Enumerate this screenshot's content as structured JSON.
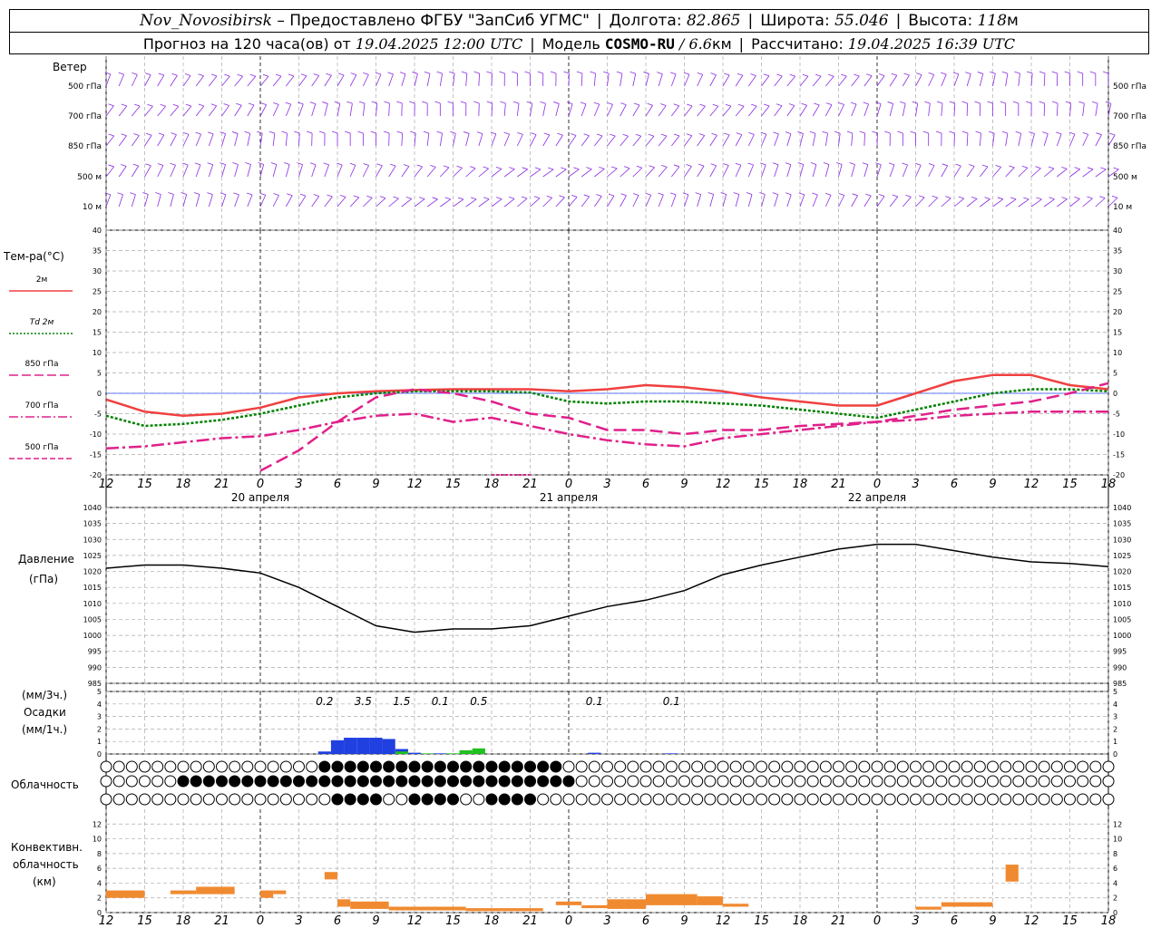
{
  "header": {
    "station": "Nov_Novosibirsk",
    "dash": "–",
    "provider": "Предоставлено ФГБУ \"ЗапСиб УГМС\"",
    "lon_label": "Долгота:",
    "lon": "82.865",
    "lat_label": "Широта:",
    "lat": "55.046",
    "alt_label": "Высота:",
    "alt": "118",
    "alt_unit": "м",
    "forecast_label": "Прогноз на 120 часа(ов) от",
    "forecast_time": "19.04.2025 12:00 UTC",
    "model_label": "Модель",
    "model": "COSMO-RU",
    "model_res": "/ 6.6",
    "res_unit": "км",
    "calc_label": "Рассчитано:",
    "calc_time": "19.04.2025 16:39 UTC"
  },
  "colors": {
    "t2m": "#f04040",
    "td2m": "#008000",
    "t850": "#e0208a",
    "grid": "#aaaaaa",
    "wind": "#8a2be2",
    "precip_rain": "#2040e0",
    "precip_green": "#20c020",
    "conv": "#f08a30"
  },
  "time_axis": {
    "hours": [
      "12",
      "15",
      "18",
      "21",
      "0",
      "3",
      "6",
      "9",
      "12",
      "15",
      "18",
      "21",
      "0",
      "3",
      "6",
      "9",
      "12",
      "15",
      "18",
      "21",
      "0",
      "3",
      "6",
      "9",
      "12",
      "15",
      "18"
    ],
    "dates": [
      "20 апреля",
      "21 апреля",
      "22 апреля"
    ]
  },
  "wind_panel": {
    "title": "Ветер",
    "levels": [
      "500 гПа",
      "700 гПа",
      "850 гПа",
      "500 м",
      "10 м"
    ],
    "levels_right": [
      "500 гПа",
      "700 гПа",
      "850 гПа",
      "500 м",
      "10 м"
    ]
  },
  "temp_panel": {
    "title": "Тем-ра(°C)",
    "legend": [
      {
        "label": "2м",
        "style": "solid",
        "color": "#f04040"
      },
      {
        "label": "Td  2м",
        "style": "dotted",
        "color": "#008000"
      },
      {
        "label": "850 гПа",
        "style": "dashed",
        "color": "#e0208a"
      },
      {
        "label": "700 гПа",
        "style": "dashdot",
        "color": "#e0208a"
      },
      {
        "label": "500 гПа",
        "style": "dashed-thin",
        "color": "#e0208a"
      }
    ],
    "yticks": [
      "40",
      "35",
      "30",
      "25",
      "20",
      "15",
      "10",
      "5",
      "0",
      "-5",
      "-10",
      "-15",
      "-20"
    ]
  },
  "pressure_panel": {
    "title": "Давление",
    "unit": "(гПа)",
    "yticks": [
      "1040",
      "1035",
      "1030",
      "1025",
      "1020",
      "1015",
      "1010",
      "1005",
      "1000",
      "995",
      "990",
      "985"
    ]
  },
  "precip_panel": {
    "unit_top": "(мм/3ч.)",
    "title": "Осадки",
    "unit_bottom": "(мм/1ч.)",
    "yticks": [
      "5",
      "4",
      "3",
      "2",
      "1",
      "0"
    ],
    "totals": [
      {
        "hour": 17,
        "text": "0.2"
      },
      {
        "hour": 20,
        "text": "3.5"
      },
      {
        "hour": 23,
        "text": "1.5"
      },
      {
        "hour": 26,
        "text": "0.1"
      },
      {
        "hour": 29,
        "text": "0.5"
      },
      {
        "hour": 38,
        "text": "0.1"
      },
      {
        "hour": 44,
        "text": "0.1"
      }
    ]
  },
  "cloud_panel": {
    "title": "Облачность"
  },
  "conv_panel": {
    "title_1": "Конвективн.",
    "title_2": "облачность",
    "unit": "(км)",
    "yticks": [
      "12",
      "10",
      "8",
      "6",
      "4",
      "2",
      "0"
    ]
  },
  "chart_data": [
    {
      "type": "line",
      "title": "Тем-ра(°C)",
      "x_hours_from_start": [
        0,
        3,
        6,
        9,
        12,
        15,
        18,
        21,
        24,
        27,
        30,
        33,
        36,
        39,
        42,
        45,
        48,
        51,
        54,
        57,
        60,
        63,
        66,
        69,
        72,
        75,
        78
      ],
      "ylim": [
        -20,
        40
      ],
      "series": [
        {
          "name": "2м",
          "values": [
            -1.5,
            -4.5,
            -5.5,
            -5,
            -3.5,
            -1,
            0,
            0.5,
            0.8,
            1,
            1,
            1,
            0.5,
            1,
            2,
            1.5,
            0.5,
            -1,
            -2,
            -3,
            -3,
            0,
            3,
            4.5,
            4.5,
            2,
            1
          ]
        },
        {
          "name": "Td  2м",
          "values": [
            -5.5,
            -8,
            -7.5,
            -6.5,
            -5,
            -3,
            -1,
            0,
            0.5,
            0.5,
            0.5,
            0.2,
            -2,
            -2.5,
            -2,
            -2,
            -2.5,
            -3,
            -4,
            -5,
            -6,
            -4,
            -2,
            0,
            1,
            1,
            0.5
          ]
        },
        {
          "name": "850 гПа",
          "values": [
            null,
            null,
            null,
            null,
            -19,
            -14,
            -7,
            -1,
            1,
            0,
            -2,
            -5,
            -6,
            -9,
            -9,
            -10,
            -9,
            -9,
            -8,
            -7.5,
            -7,
            -5.5,
            -4,
            -3,
            -2,
            0,
            2.5
          ]
        },
        {
          "name": "700 гПа",
          "values": [
            -13.5,
            -13,
            -12,
            -11,
            -10.5,
            -9,
            -7,
            -5.5,
            -5,
            -7,
            -6,
            -8,
            -10,
            -11.5,
            -12.5,
            -13,
            -11,
            -10,
            -9,
            -8,
            -7,
            -6.5,
            -5.5,
            -5,
            -4.5,
            -4.5,
            -4.5
          ]
        },
        {
          "name": "500 гПа",
          "values": [
            null,
            null,
            null,
            null,
            null,
            null,
            null,
            null,
            null,
            null,
            -20,
            -20,
            null,
            null,
            null,
            null,
            null,
            null,
            null,
            null,
            null,
            null,
            null,
            null,
            null,
            null,
            null
          ]
        }
      ]
    },
    {
      "type": "line",
      "title": "Давление",
      "x_hours_from_start": [
        0,
        3,
        6,
        9,
        12,
        15,
        18,
        21,
        24,
        27,
        30,
        33,
        36,
        39,
        42,
        45,
        48,
        51,
        54,
        57,
        60,
        63,
        66,
        69,
        72,
        75,
        78
      ],
      "ylim": [
        985,
        1040
      ],
      "series": [
        {
          "name": "Давление",
          "values": [
            1021,
            1022,
            1022,
            1021,
            1019.5,
            1015,
            1009,
            1003,
            1001,
            1002,
            1002,
            1003,
            1006,
            1009,
            1011,
            1014,
            1019,
            1022,
            1024.5,
            1027,
            1028.5,
            1028.5,
            1026.5,
            1024.5,
            1023,
            1022.5,
            1021.5
          ]
        }
      ]
    },
    {
      "type": "bar",
      "title": "Осадки",
      "ylim": [
        0,
        5
      ],
      "x_hours_from_start": [
        17,
        18,
        19,
        20,
        21,
        22,
        23,
        24,
        25,
        26,
        27,
        28,
        29,
        30,
        38,
        44
      ],
      "series": [
        {
          "name": "rain",
          "values": [
            0.2,
            1.1,
            1.3,
            1.3,
            1.3,
            1.2,
            0.4,
            0.1,
            0,
            0.05,
            0,
            0,
            0,
            0,
            0.1,
            0.05
          ]
        },
        {
          "name": "green",
          "values": [
            0,
            0,
            0,
            0,
            0,
            0,
            0.2,
            0,
            0.05,
            0,
            0.05,
            0.3,
            0.45,
            0,
            0,
            0
          ]
        }
      ]
    },
    {
      "type": "bar",
      "title": "Конвективн. облачность",
      "ylim": [
        0,
        14
      ],
      "bars": [
        {
          "x0": 0,
          "x1": 3,
          "bottom": 2,
          "top": 3
        },
        {
          "x0": 5,
          "x1": 7,
          "bottom": 2.5,
          "top": 3
        },
        {
          "x0": 7,
          "x1": 10,
          "bottom": 2.5,
          "top": 3.5
        },
        {
          "x0": 12,
          "x1": 13,
          "bottom": 2,
          "top": 3
        },
        {
          "x0": 13,
          "x1": 14,
          "bottom": 2.5,
          "top": 3
        },
        {
          "x0": 17,
          "x1": 18,
          "bottom": 4.5,
          "top": 5.5
        },
        {
          "x0": 18,
          "x1": 19,
          "bottom": 0.8,
          "top": 1.8
        },
        {
          "x0": 19,
          "x1": 22,
          "bottom": 0.5,
          "top": 1.5
        },
        {
          "x0": 22,
          "x1": 28,
          "bottom": 0.3,
          "top": 0.8
        },
        {
          "x0": 28,
          "x1": 34,
          "bottom": 0.2,
          "top": 0.6
        },
        {
          "x0": 35,
          "x1": 37,
          "bottom": 1,
          "top": 1.5
        },
        {
          "x0": 37,
          "x1": 39,
          "bottom": 0.6,
          "top": 1
        },
        {
          "x0": 39,
          "x1": 42,
          "bottom": 0.5,
          "top": 1.8
        },
        {
          "x0": 42,
          "x1": 46,
          "bottom": 1,
          "top": 2.5
        },
        {
          "x0": 46,
          "x1": 48,
          "bottom": 1,
          "top": 2.2
        },
        {
          "x0": 48,
          "x1": 50,
          "bottom": 0.8,
          "top": 1.2
        },
        {
          "x0": 63,
          "x1": 65,
          "bottom": 0.4,
          "top": 0.8
        },
        {
          "x0": 65,
          "x1": 69,
          "bottom": 0.8,
          "top": 1.4
        },
        {
          "x0": 70,
          "x1": 71,
          "bottom": 4.2,
          "top": 6.5
        }
      ]
    }
  ]
}
